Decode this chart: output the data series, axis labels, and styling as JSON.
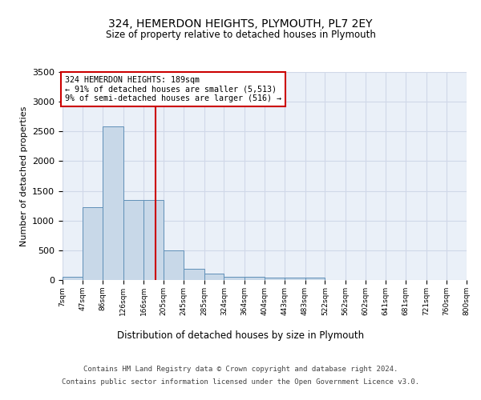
{
  "title": "324, HEMERDON HEIGHTS, PLYMOUTH, PL7 2EY",
  "subtitle": "Size of property relative to detached houses in Plymouth",
  "xlabel": "Distribution of detached houses by size in Plymouth",
  "ylabel": "Number of detached properties",
  "bin_edges": [
    7,
    47,
    86,
    126,
    166,
    205,
    245,
    285,
    324,
    364,
    404,
    443,
    483,
    522,
    562,
    602,
    641,
    681,
    721,
    760,
    800
  ],
  "bar_heights": [
    50,
    1220,
    2580,
    1340,
    1340,
    500,
    190,
    110,
    55,
    50,
    35,
    35,
    35,
    0,
    0,
    0,
    0,
    0,
    0,
    0
  ],
  "bar_color": "#c8d8e8",
  "bar_edge_color": "#6090b8",
  "grid_color": "#d0d8e8",
  "background_color": "#eaf0f8",
  "property_size": 189,
  "vline_color": "#cc0000",
  "ylim": [
    0,
    3500
  ],
  "annotation_text": "324 HEMERDON HEIGHTS: 189sqm\n← 91% of detached houses are smaller (5,513)\n9% of semi-detached houses are larger (516) →",
  "annotation_box_color": "#cc0000",
  "footer_line1": "Contains HM Land Registry data © Crown copyright and database right 2024.",
  "footer_line2": "Contains public sector information licensed under the Open Government Licence v3.0.",
  "tick_labels": [
    "7sqm",
    "47sqm",
    "86sqm",
    "126sqm",
    "166sqm",
    "205sqm",
    "245sqm",
    "285sqm",
    "324sqm",
    "364sqm",
    "404sqm",
    "443sqm",
    "483sqm",
    "522sqm",
    "562sqm",
    "602sqm",
    "641sqm",
    "681sqm",
    "721sqm",
    "760sqm",
    "800sqm"
  ]
}
